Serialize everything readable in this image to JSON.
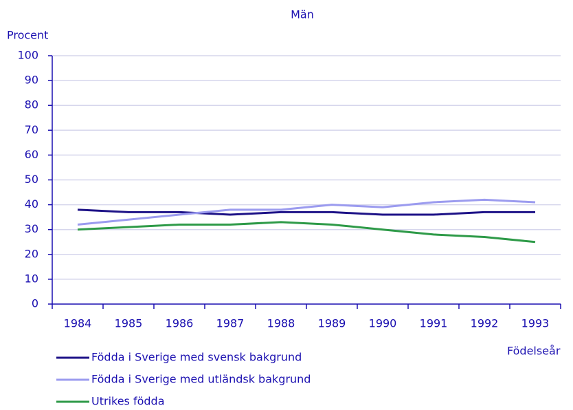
{
  "chart_data": {
    "type": "line",
    "title": "Män",
    "y_label": "Procent",
    "x_label": "Födelseår",
    "categories": [
      "1984",
      "1985",
      "1986",
      "1987",
      "1988",
      "1989",
      "1990",
      "1991",
      "1992",
      "1993"
    ],
    "series": [
      {
        "name": "Födda i Sverige med svensk bakgrund",
        "color": "#1d1287",
        "values": [
          38,
          37,
          37,
          36,
          37,
          37,
          36,
          36,
          37,
          37
        ]
      },
      {
        "name": "Födda i Sverige med utländsk bakgrund",
        "color": "#9b9bef",
        "values": [
          32,
          34,
          36,
          38,
          38,
          40,
          39,
          41,
          42,
          41
        ]
      },
      {
        "name": "Utrikes födda",
        "color": "#2e9a48",
        "values": [
          30,
          31,
          32,
          32,
          33,
          32,
          30,
          28,
          27,
          25
        ]
      }
    ],
    "ylim": [
      0,
      100
    ],
    "yticks": [
      0,
      10,
      20,
      30,
      40,
      50,
      60,
      70,
      80,
      90,
      100
    ],
    "grid": true
  }
}
